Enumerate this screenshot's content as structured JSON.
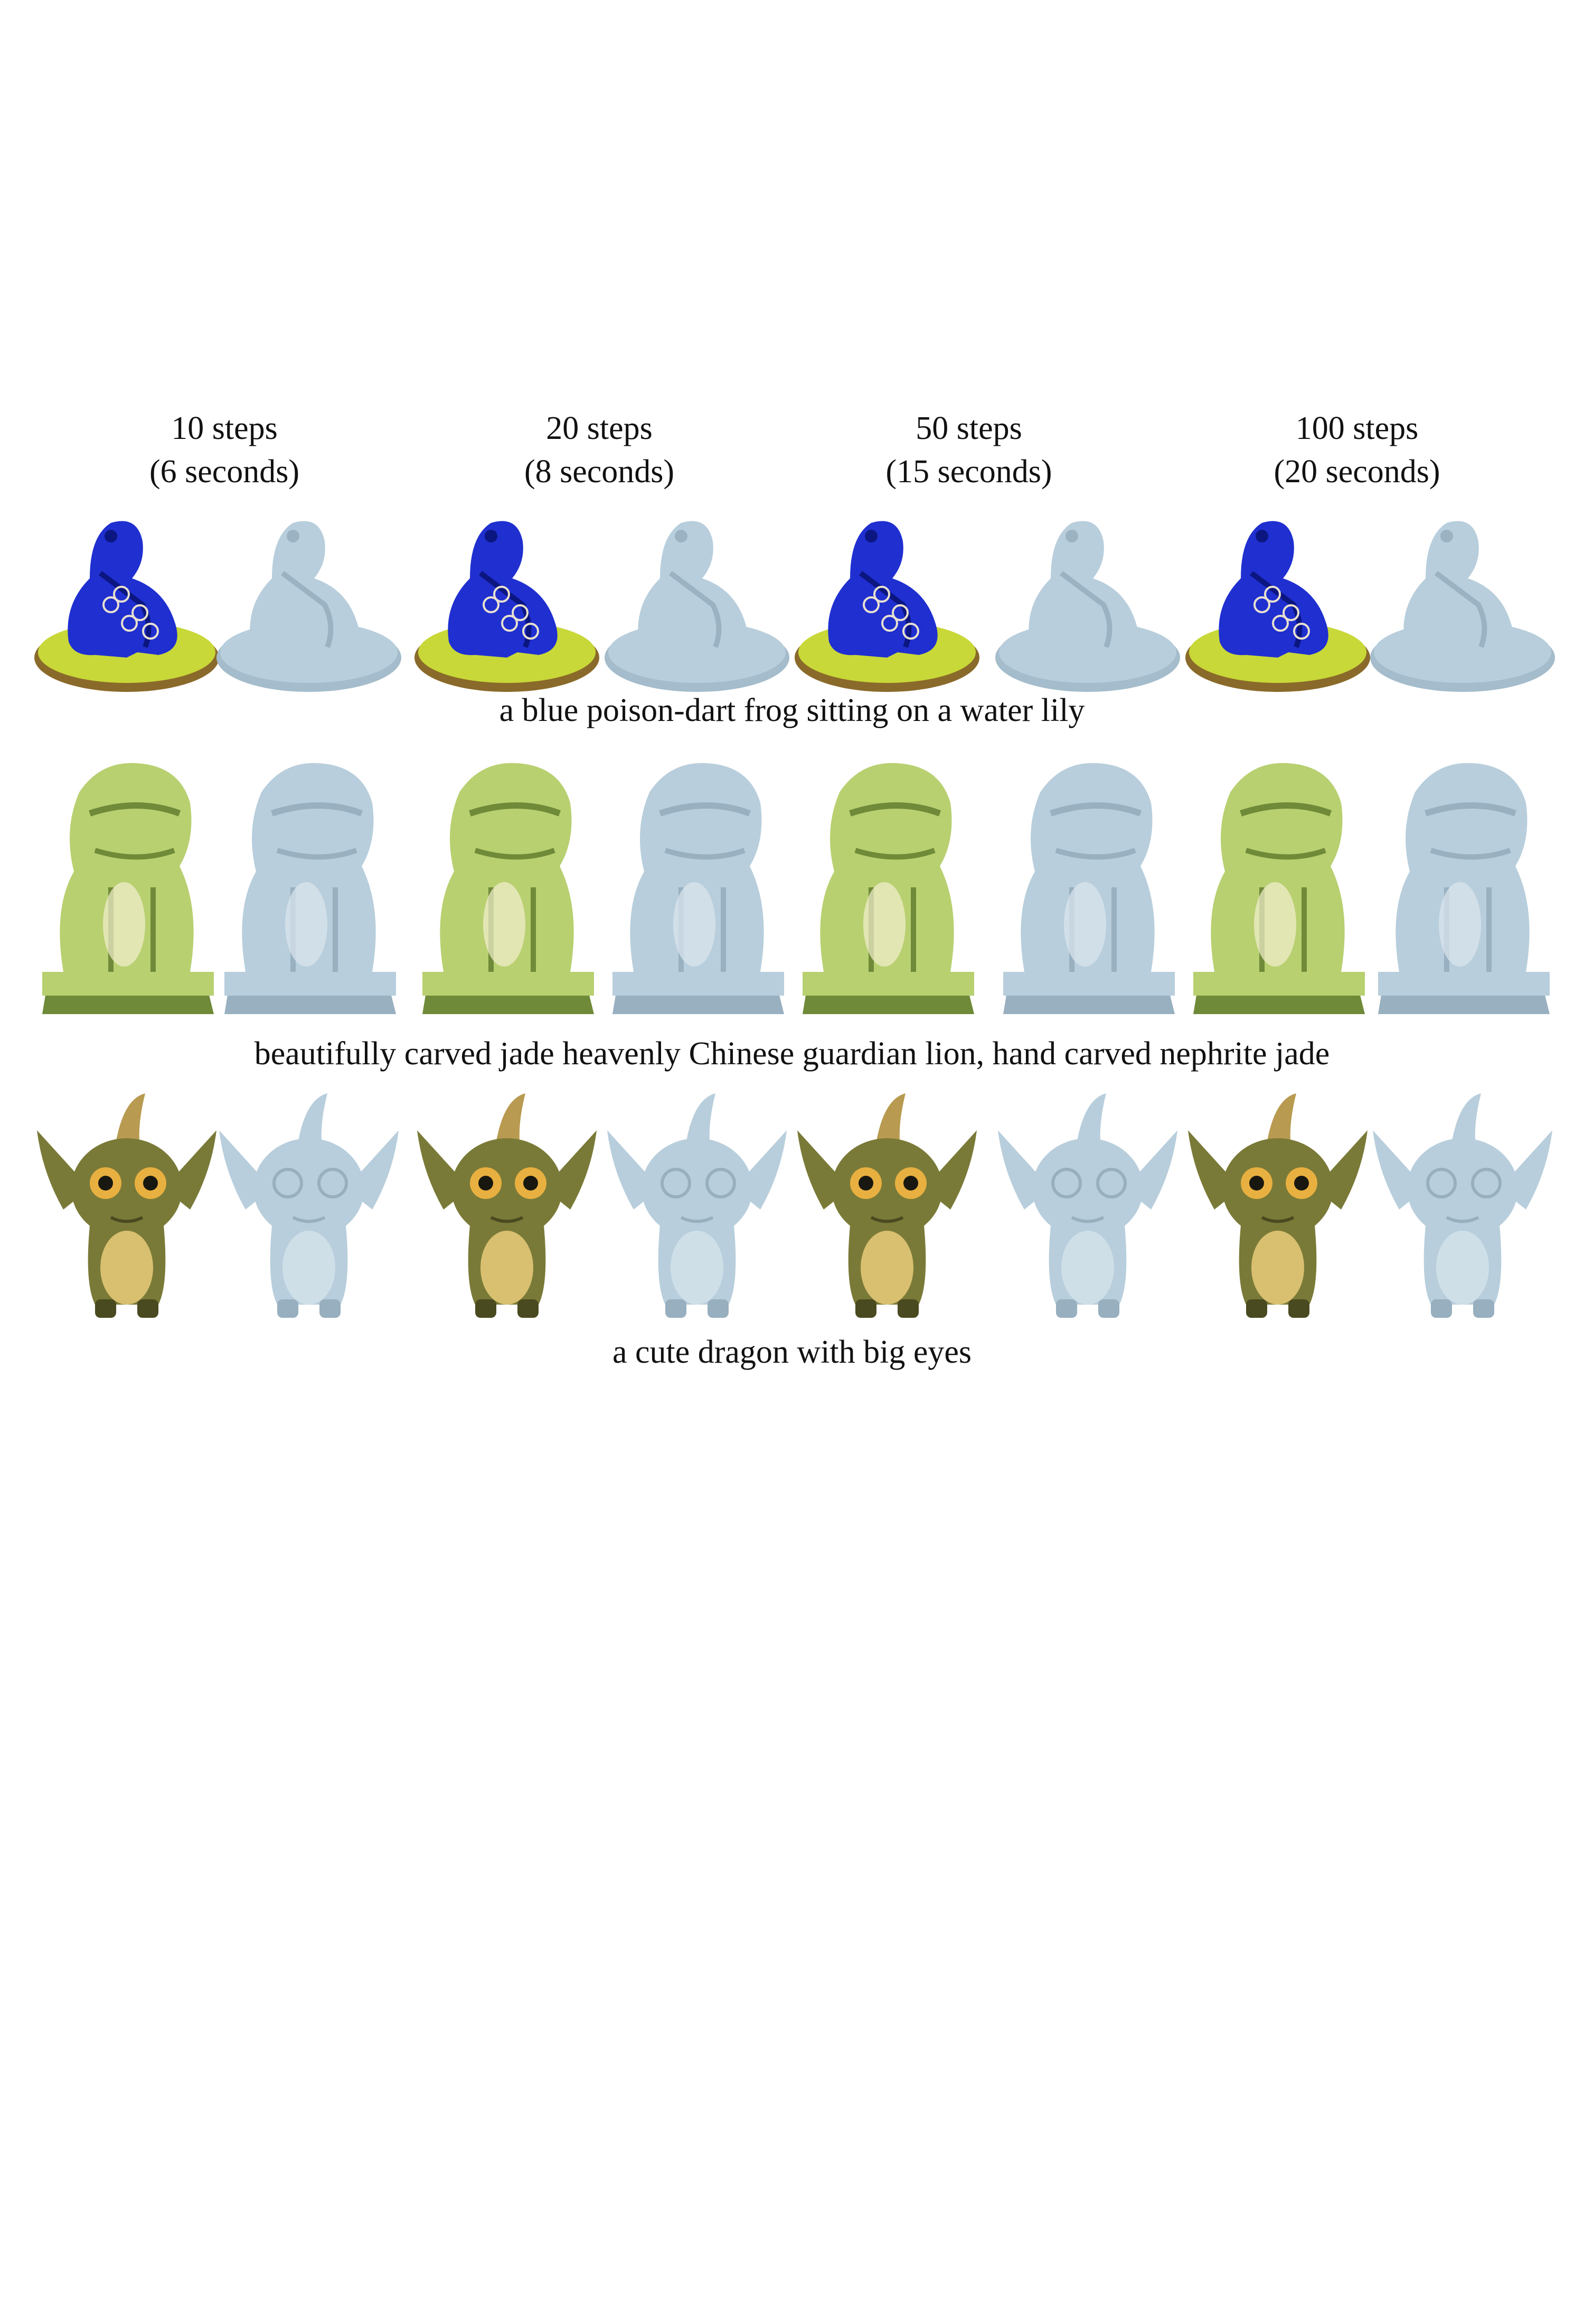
{
  "figure": {
    "columns": [
      {
        "steps": "10 steps",
        "time": "(6 seconds)"
      },
      {
        "steps": "20 steps",
        "time": "(8 seconds)"
      },
      {
        "steps": "50 steps",
        "time": "(15 seconds)"
      },
      {
        "steps": "100 steps",
        "time": "(20 seconds)"
      }
    ],
    "rows": [
      {
        "subject": "frog",
        "caption": "a blue poison-dart frog sitting on a water lily"
      },
      {
        "subject": "lion",
        "caption": "beautifully carved jade heavenly Chinese guardian lion, hand carved nephrite jade"
      },
      {
        "subject": "dragon",
        "caption": "a cute dragon with big eyes"
      }
    ],
    "render_types": [
      "textured-render",
      "geometry-render"
    ]
  },
  "colors": {
    "frog_body": "#1f2fd0",
    "frog_lily": "#c8d838",
    "jade": "#b8d070",
    "dragon_skin": "#7a7a38",
    "dragon_belly": "#d8c070",
    "geometry": "#b8cedc"
  }
}
